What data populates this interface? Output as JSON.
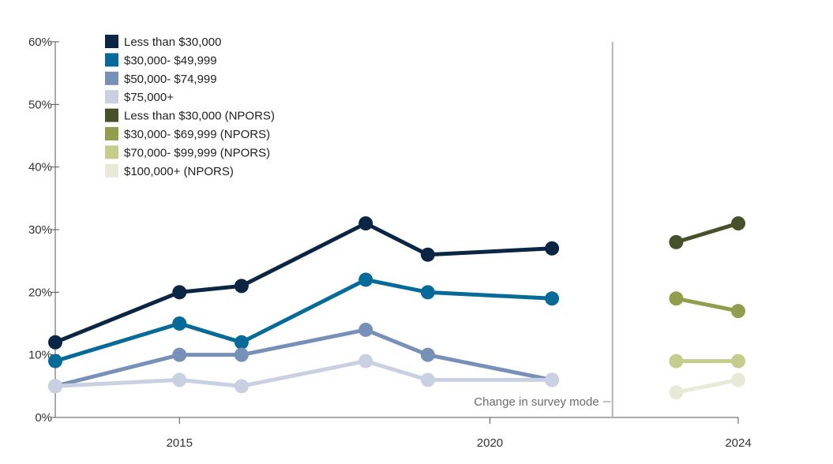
{
  "chart_data": {
    "type": "line",
    "title": "",
    "xlabel": "",
    "ylabel": "",
    "ylim": [
      0,
      60
    ],
    "xlim": [
      2013,
      2024
    ],
    "y_ticks": [
      0,
      10,
      20,
      30,
      40,
      50,
      60
    ],
    "y_tick_labels": [
      "0%",
      "10%",
      "20%",
      "30%",
      "40%",
      "50%",
      "60%"
    ],
    "x_ticks": [
      2015,
      2020,
      2024
    ],
    "x_tick_labels": [
      "2015",
      "2020",
      "2024"
    ],
    "grid": false,
    "legend_position": "top-left",
    "annotation": {
      "text": "Change in survey mode",
      "x": 2022
    },
    "series": [
      {
        "name": "Less than $30,000",
        "color": "#0b2545",
        "x": [
          2013,
          2015,
          2016,
          2018,
          2019,
          2021
        ],
        "values": [
          12,
          20,
          21,
          31,
          26,
          27
        ]
      },
      {
        "name": "$30,000- $49,999",
        "color": "#066b99",
        "x": [
          2013,
          2015,
          2016,
          2018,
          2019,
          2021
        ],
        "values": [
          9,
          15,
          12,
          22,
          20,
          19
        ]
      },
      {
        "name": "$50,000- $74,999",
        "color": "#7690b8",
        "x": [
          2013,
          2015,
          2016,
          2018,
          2019,
          2021
        ],
        "values": [
          5,
          10,
          10,
          14,
          10,
          6
        ]
      },
      {
        "name": "$75,000+",
        "color": "#c8d0e2",
        "x": [
          2013,
          2015,
          2016,
          2018,
          2019,
          2021
        ],
        "values": [
          5,
          6,
          5,
          9,
          6,
          6
        ]
      },
      {
        "name": "Less than $30,000 (NPORS)",
        "color": "#46502a",
        "x": [
          2023,
          2024
        ],
        "values": [
          28,
          31
        ]
      },
      {
        "name": "$30,000- $69,999 (NPORS)",
        "color": "#939e4c",
        "x": [
          2023,
          2024
        ],
        "values": [
          19,
          17
        ]
      },
      {
        "name": "$70,000- $99,999 (NPORS)",
        "color": "#c5cc8c",
        "x": [
          2023,
          2024
        ],
        "values": [
          9,
          9
        ]
      },
      {
        "name": "$100,000+ (NPORS)",
        "color": "#e8e9d6",
        "x": [
          2023,
          2024
        ],
        "values": [
          4,
          6
        ]
      }
    ]
  }
}
